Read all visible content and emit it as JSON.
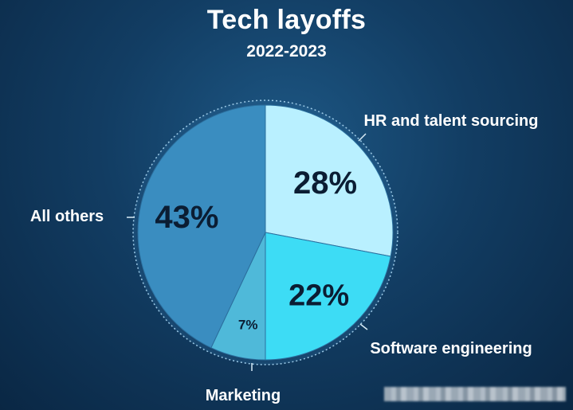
{
  "title": "Tech layoffs",
  "subtitle": "2022-2023",
  "chart_data": {
    "type": "pie",
    "title": "Tech layoffs",
    "subtitle": "2022-2023",
    "start_angle_deg": 0,
    "direction": "clockwise",
    "slices": [
      {
        "label": "HR and talent sourcing",
        "value": 28,
        "value_label": "28%",
        "color": "#b9f0ff"
      },
      {
        "label": "Software engineering",
        "value": 22,
        "value_label": "22%",
        "color": "#3ddcf5"
      },
      {
        "label": "Marketing",
        "value": 7,
        "value_label": "7%",
        "color": "#4fb9d9"
      },
      {
        "label": "All others",
        "value": 43,
        "value_label": "43%",
        "color": "#3a8dc0"
      }
    ]
  }
}
